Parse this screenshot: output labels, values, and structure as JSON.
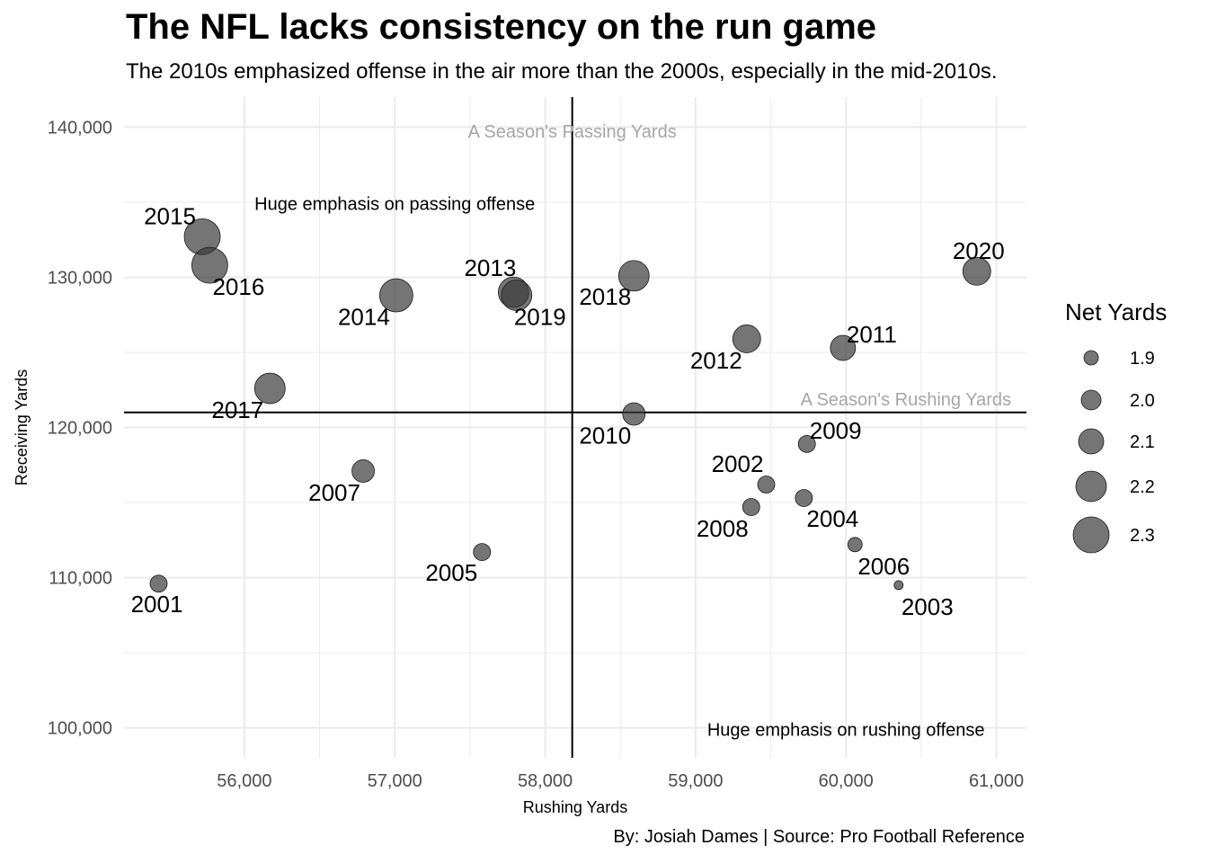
{
  "chart_data": {
    "type": "scatter",
    "title": "The NFL lacks consistency on the run game",
    "subtitle": "The 2010s emphasized offense in the air more than the 2000s, especially in the mid-2010s.",
    "caption": "By: Josiah Dames | Source: Pro Football Reference",
    "xlabel": "Rushing Yards",
    "ylabel": "Receiving Yards",
    "xlim": [
      55200,
      61200
    ],
    "ylim": [
      98000,
      142000
    ],
    "x_ticks": [
      56000,
      57000,
      58000,
      59000,
      60000,
      61000
    ],
    "x_tick_labels": [
      "56,000",
      "57,000",
      "58,000",
      "59,000",
      "60,000",
      "61,000"
    ],
    "y_ticks": [
      100000,
      110000,
      120000,
      130000,
      140000
    ],
    "y_tick_labels": [
      "100,000",
      "110,000",
      "120,000",
      "130,000",
      "140,000"
    ],
    "grid": true,
    "reference_lines": {
      "vertical_x": 58180,
      "horizontal_y": 121000,
      "vertical_label": "A Season's Passing Yards",
      "horizontal_label": "A Season's Rushing Yards"
    },
    "annotations": [
      {
        "text": "Huge emphasis on passing offense",
        "x": 57000,
        "y": 134900
      },
      {
        "text": "Huge emphasis on rushing offense",
        "x": 60000,
        "y": 99900
      }
    ],
    "size_legend": {
      "title": "Net Yards",
      "placement": "right",
      "values": [
        1.9,
        2.0,
        2.1,
        2.2,
        2.3
      ],
      "labels": [
        "1.9",
        "2.0",
        "2.1",
        "2.2",
        "2.3"
      ]
    },
    "colors": {
      "point": "#3a3a3a",
      "grid": "#ebebeb",
      "ref_line": "#000000",
      "ref_label": "#a6a6a6",
      "tick": "#4d4d4d"
    },
    "points": [
      {
        "label": "2001",
        "x": 55430,
        "y": 109600,
        "size": 1.95
      },
      {
        "label": "2002",
        "x": 59470,
        "y": 116200,
        "size": 1.95
      },
      {
        "label": "2003",
        "x": 60350,
        "y": 109500,
        "size": 1.8
      },
      {
        "label": "2004",
        "x": 59720,
        "y": 115300,
        "size": 1.95
      },
      {
        "label": "2005",
        "x": 57580,
        "y": 111700,
        "size": 1.95
      },
      {
        "label": "2006",
        "x": 60060,
        "y": 112200,
        "size": 1.9
      },
      {
        "label": "2007",
        "x": 56790,
        "y": 117100,
        "size": 2.05
      },
      {
        "label": "2008",
        "x": 59370,
        "y": 114700,
        "size": 1.95
      },
      {
        "label": "2009",
        "x": 59740,
        "y": 118900,
        "size": 1.95
      },
      {
        "label": "2010",
        "x": 58590,
        "y": 120900,
        "size": 2.05
      },
      {
        "label": "2011",
        "x": 59980,
        "y": 125300,
        "size": 2.1
      },
      {
        "label": "2012",
        "x": 59340,
        "y": 125900,
        "size": 2.15
      },
      {
        "label": "2013",
        "x": 57790,
        "y": 129000,
        "size": 2.2
      },
      {
        "label": "2014",
        "x": 57010,
        "y": 128800,
        "size": 2.25
      },
      {
        "label": "2015",
        "x": 55720,
        "y": 132700,
        "size": 2.3
      },
      {
        "label": "2016",
        "x": 55770,
        "y": 130800,
        "size": 2.3
      },
      {
        "label": "2017",
        "x": 56170,
        "y": 122600,
        "size": 2.2
      },
      {
        "label": "2018",
        "x": 58590,
        "y": 130100,
        "size": 2.2
      },
      {
        "label": "2019",
        "x": 57810,
        "y": 128800,
        "size": 2.2
      },
      {
        "label": "2020",
        "x": 60870,
        "y": 130400,
        "size": 2.15
      }
    ]
  }
}
